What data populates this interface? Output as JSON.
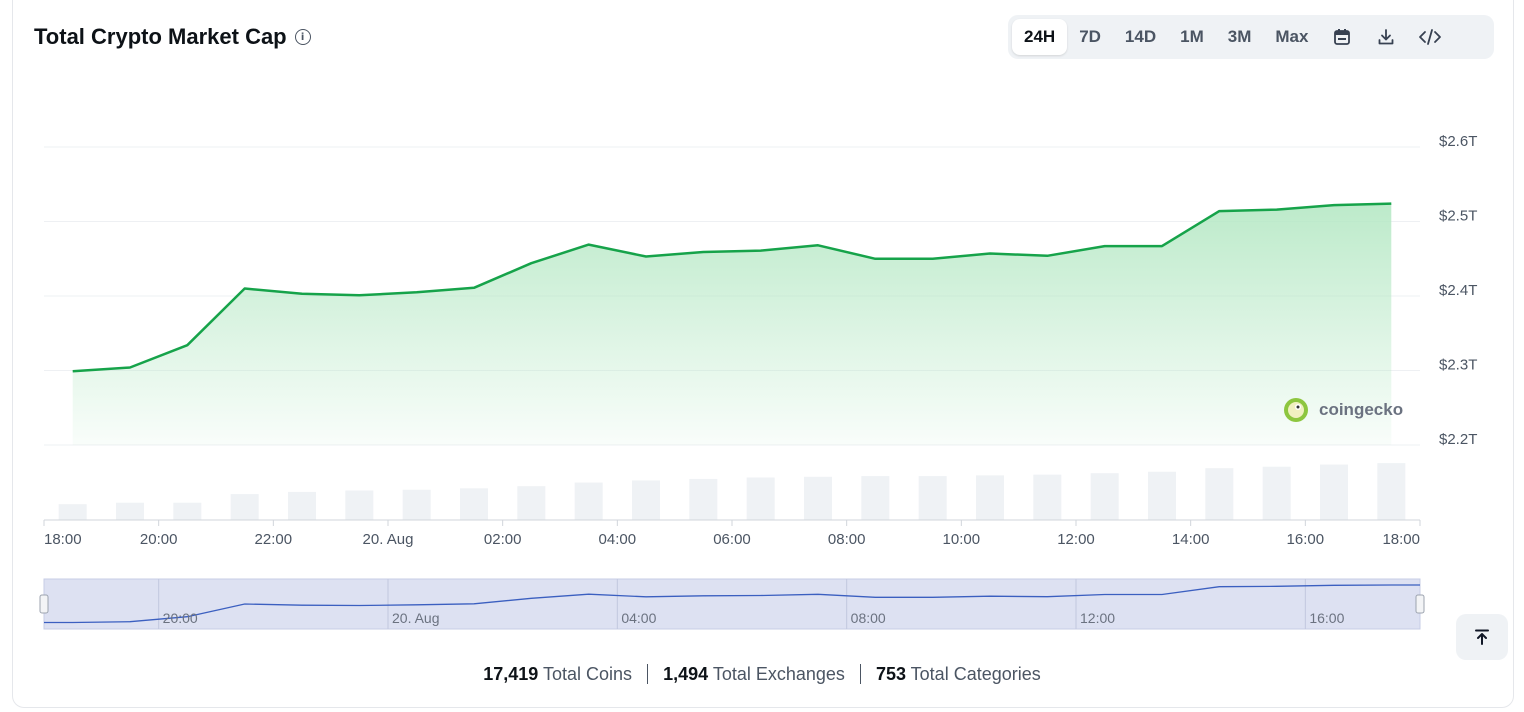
{
  "header": {
    "title": "Total Crypto Market Cap"
  },
  "toolbar": {
    "ranges": [
      "24H",
      "7D",
      "14D",
      "1M",
      "3M",
      "Max"
    ],
    "active_range": "24H",
    "icons": [
      "calendar-icon",
      "download-icon",
      "embed-code-icon"
    ]
  },
  "watermark": {
    "text": "coingecko"
  },
  "navigator": {
    "labels": [
      "20:00",
      "20. Aug",
      "04:00",
      "08:00",
      "12:00",
      "16:00"
    ]
  },
  "footer": {
    "coins_value": "17,419",
    "coins_label": "Total Coins",
    "exchanges_value": "1,494",
    "exchanges_label": "Total Exchanges",
    "categories_value": "753",
    "categories_label": "Total Categories"
  },
  "colors": {
    "line": "#16a34a",
    "area_top": "#b5e8c4",
    "volume_bar": "#eff2f5",
    "navigator_bg": "#dde1f2",
    "navigator_line": "#3b5fc0"
  },
  "chart_data": {
    "type": "area",
    "x_tick_labels": [
      "18:00",
      "20:00",
      "22:00",
      "20. Aug",
      "02:00",
      "04:00",
      "06:00",
      "08:00",
      "10:00",
      "12:00",
      "14:00",
      "16:00",
      "18:00"
    ],
    "y_tick_labels": [
      "$2.2T",
      "$2.3T",
      "$2.4T",
      "$2.5T",
      "$2.6T"
    ],
    "ylim": [
      2.2,
      2.6
    ],
    "x_hours": [
      0.5,
      1.5,
      2.5,
      3.5,
      4.5,
      5.5,
      6.5,
      7.5,
      8.5,
      9.5,
      10.5,
      11.5,
      12.5,
      13.5,
      14.5,
      15.5,
      16.5,
      17.5,
      18.5,
      19.5,
      20.5,
      21.5,
      22.5,
      23.5
    ],
    "series": [
      {
        "values": [
          2.299,
          2.304,
          2.334,
          2.41,
          2.403,
          2.401,
          2.405,
          2.411,
          2.444,
          2.469,
          2.453,
          2.459,
          2.461,
          2.468,
          2.45,
          2.45,
          2.457,
          2.454,
          2.467,
          2.467,
          2.514,
          2.516,
          2.522,
          2.524
        ]
      }
    ],
    "volume": [
      0.22,
      0.24,
      0.24,
      0.36,
      0.39,
      0.41,
      0.42,
      0.44,
      0.47,
      0.52,
      0.55,
      0.57,
      0.59,
      0.6,
      0.61,
      0.61,
      0.62,
      0.63,
      0.65,
      0.67,
      0.72,
      0.74,
      0.77,
      0.79
    ],
    "grid": true,
    "legend": "none"
  }
}
